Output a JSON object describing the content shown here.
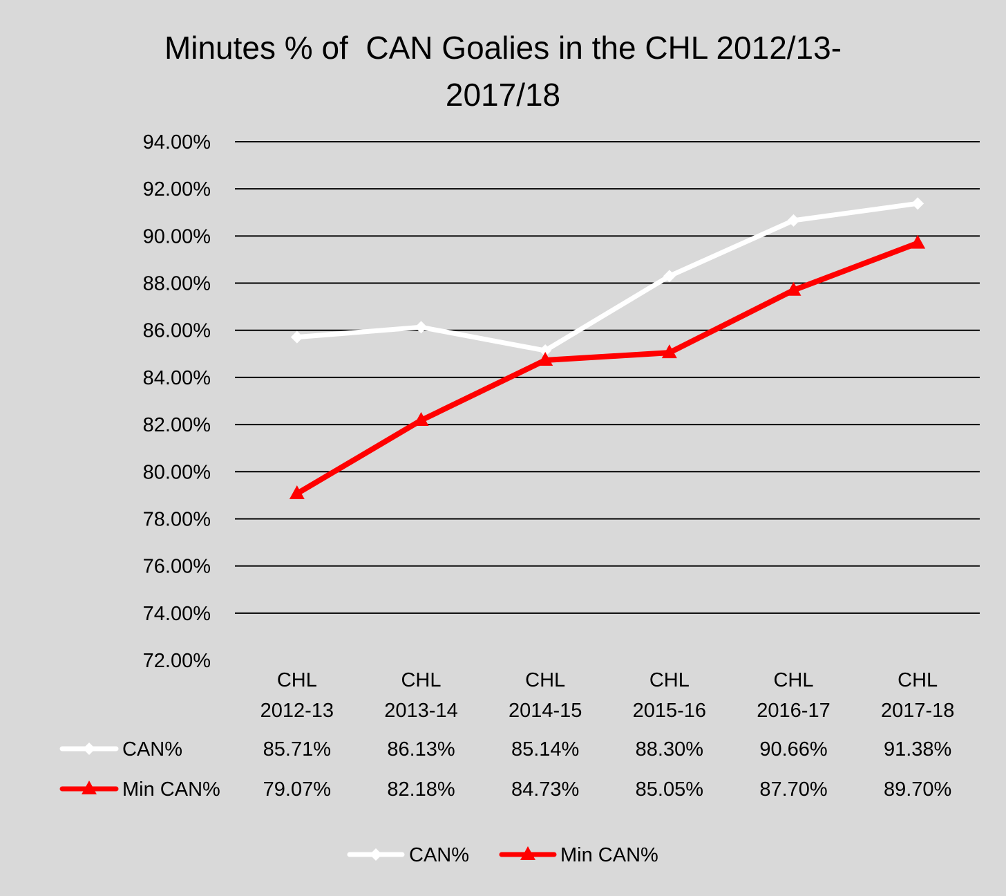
{
  "chart_data": {
    "type": "line",
    "title_lines": [
      "Minutes % of  CAN Goalies in the CHL 2012/13-",
      "2017/18"
    ],
    "categories": [
      [
        "CHL",
        "2012-13"
      ],
      [
        "CHL",
        "2013-14"
      ],
      [
        "CHL",
        "2014-15"
      ],
      [
        "CHL",
        "2015-16"
      ],
      [
        "CHL",
        "2016-17"
      ],
      [
        "CHL",
        "2017-18"
      ]
    ],
    "ylim": [
      72,
      94
    ],
    "y_tick_step": 2,
    "y_tick_labels": [
      "94.00%",
      "92.00%",
      "90.00%",
      "88.00%",
      "86.00%",
      "84.00%",
      "82.00%",
      "80.00%",
      "78.00%",
      "76.00%",
      "74.00%",
      "72.00%"
    ],
    "grid": true,
    "series": [
      {
        "name": "CAN%",
        "color": "#ffffff",
        "marker": "diamond",
        "values": [
          85.71,
          86.13,
          85.14,
          88.3,
          90.66,
          91.38
        ],
        "labels": [
          "85.71%",
          "86.13%",
          "85.14%",
          "88.30%",
          "90.66%",
          "91.38%"
        ]
      },
      {
        "name": "Min CAN%",
        "color": "#ff0000",
        "marker": "triangle",
        "values": [
          79.07,
          82.18,
          84.73,
          85.05,
          87.7,
          89.7
        ],
        "labels": [
          "79.07%",
          "82.18%",
          "84.73%",
          "85.05%",
          "87.70%",
          "89.70%"
        ]
      }
    ],
    "data_table": true,
    "legend": "bottom"
  }
}
